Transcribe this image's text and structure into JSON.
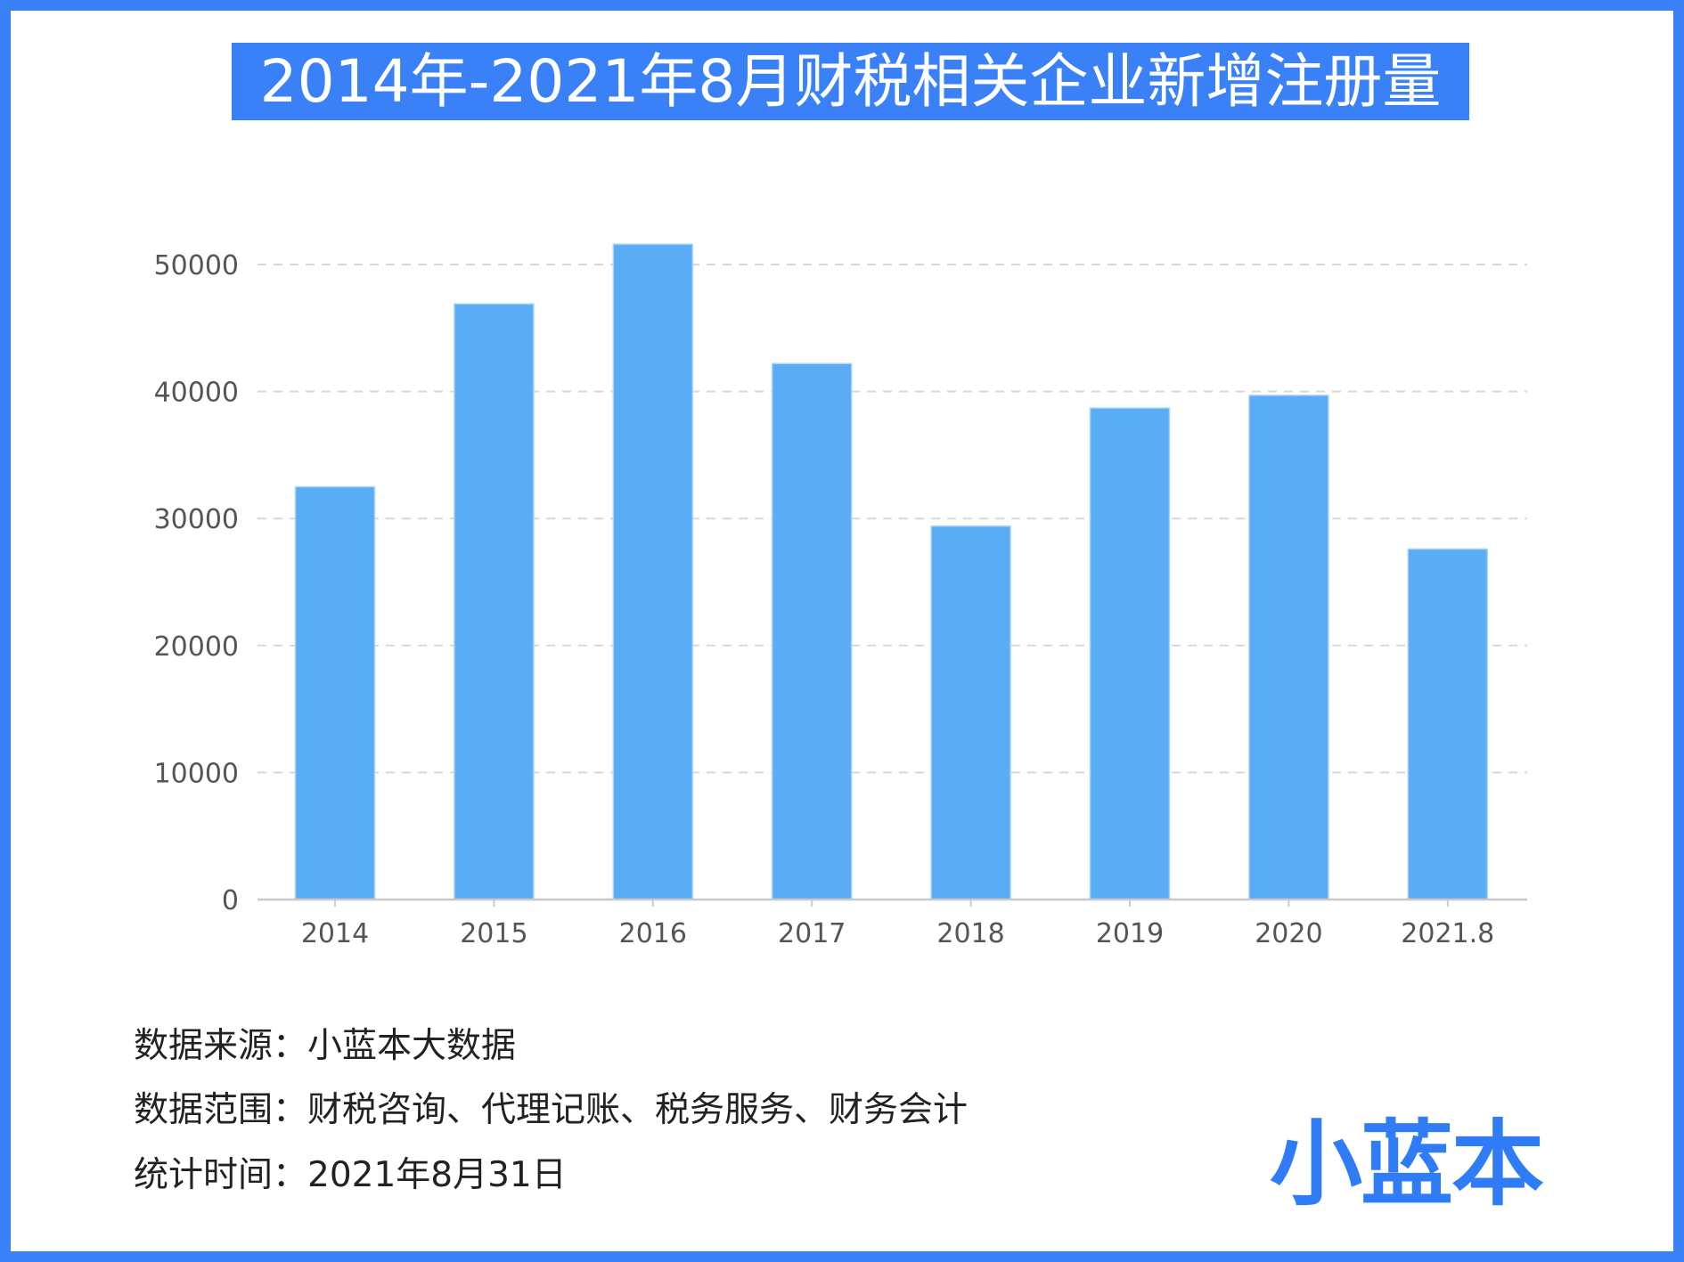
{
  "title": "2014年-2021年8月财税相关企业新增注册量",
  "chart_data": {
    "type": "bar",
    "title": "2014年-2021年8月财税相关企业新增注册量",
    "categories": [
      "2014",
      "2015",
      "2016",
      "2017",
      "2018",
      "2019",
      "2020",
      "2021.8"
    ],
    "values": [
      32500,
      46900,
      51600,
      42200,
      29400,
      38700,
      39700,
      27600
    ],
    "yticks": [
      "0",
      "10000",
      "20000",
      "30000",
      "40000",
      "50000"
    ],
    "ylim": [
      0,
      50000
    ],
    "grid": true,
    "bar_color": "#5aacf4",
    "xlabel": "",
    "ylabel": ""
  },
  "footer": {
    "source": "数据来源：小蓝本大数据",
    "scope": "数据范围：财税咨询、代理记账、税务服务、财务会计",
    "date": "统计时间：2021年8月31日"
  },
  "logo": "小蓝本",
  "colors": {
    "frame": "#3a80f7",
    "logo": "#2f7cf6"
  }
}
